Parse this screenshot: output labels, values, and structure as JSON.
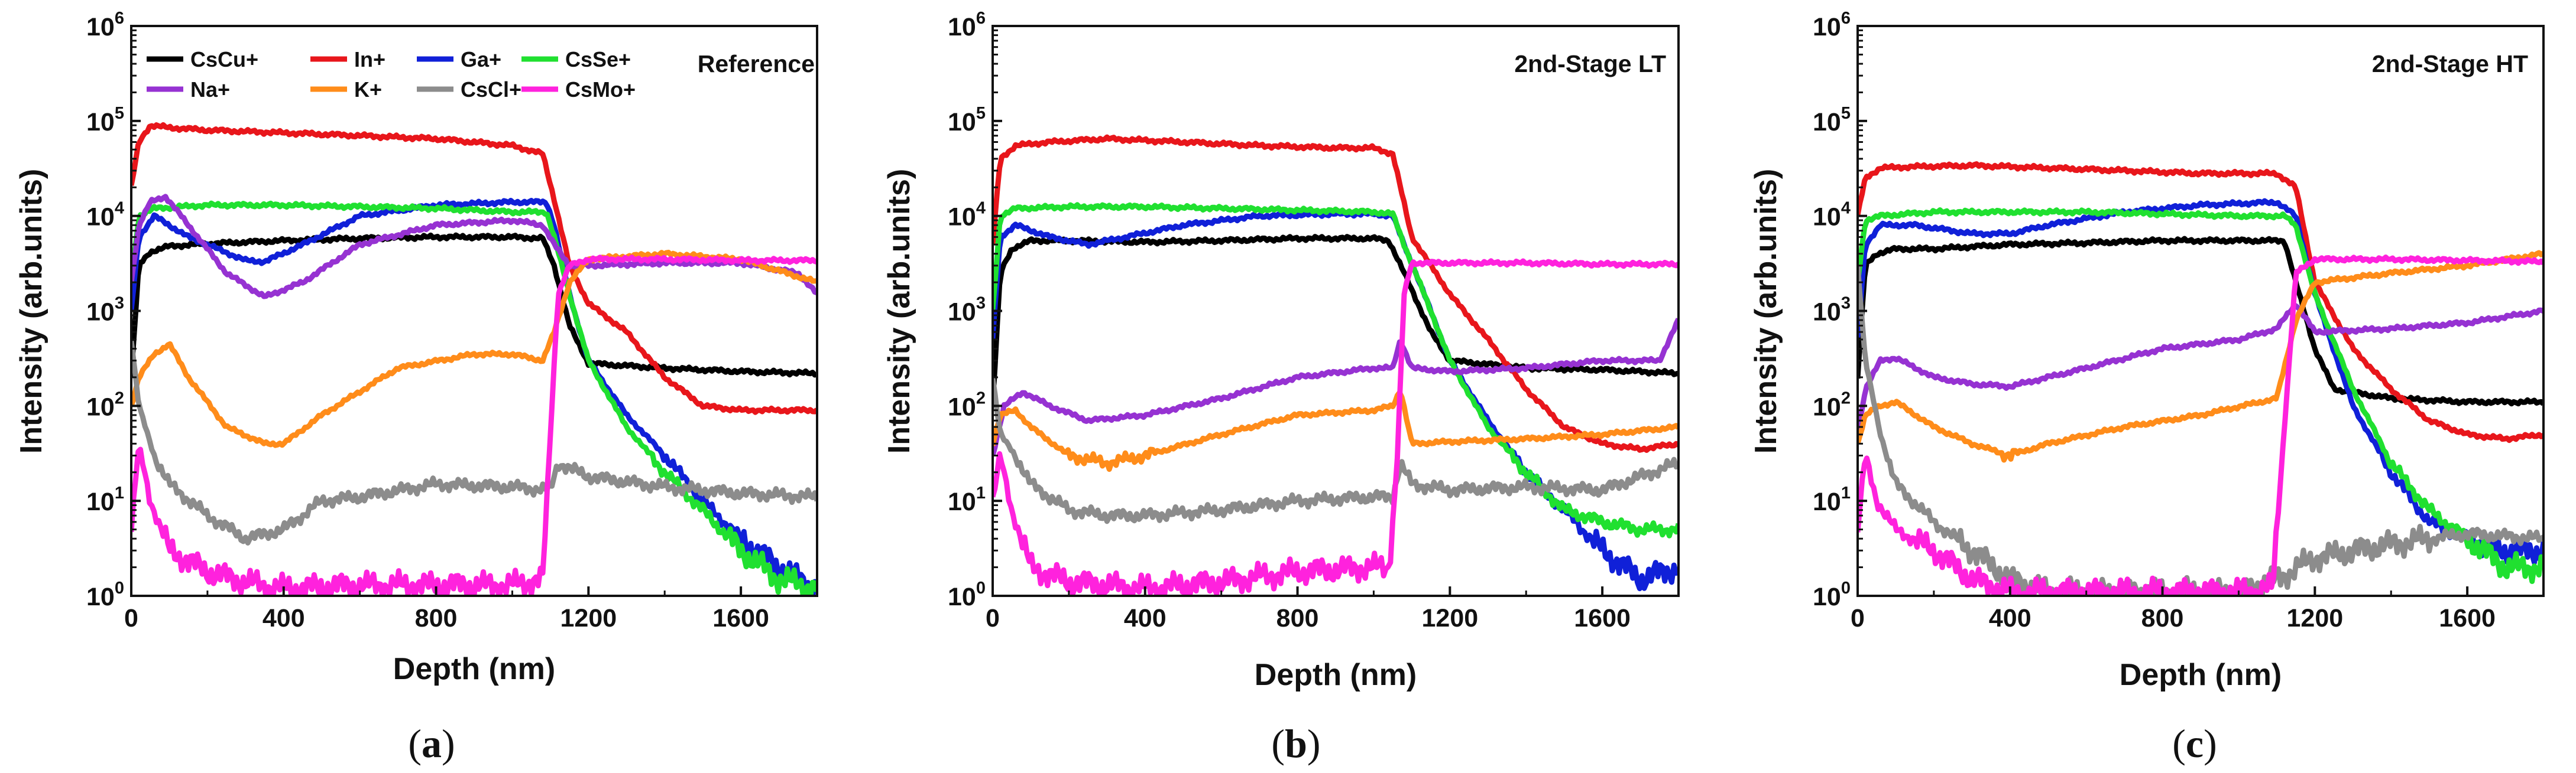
{
  "colors": {
    "CsCu+": "#000000",
    "In+": "#e8161b",
    "Ga+": "#1020d8",
    "CsSe+": "#20e030",
    "Na+": "#9632d2",
    "K+": "#ff8c1a",
    "CsCl+": "#8c8c8c",
    "CsMo+": "#ff22dd"
  },
  "chart_data": [
    {
      "type": "line",
      "panel_label": "a",
      "title": "Reference",
      "xlabel": "Depth (nm)",
      "ylabel": "Intensity (arb.units)",
      "yscale": "log",
      "xlim": [
        0,
        1800
      ],
      "ylim": [
        1,
        1000000
      ],
      "xticks": [
        "0",
        "400",
        "800",
        "1200",
        "1600"
      ],
      "yticks": [
        "10^0",
        "10^1",
        "10^2",
        "10^3",
        "10^4",
        "10^5",
        "10^6"
      ],
      "legend": [
        "CsCu+",
        "In+",
        "Ga+",
        "CsSe+",
        "Na+",
        "K+",
        "CsCl+",
        "CsMo+"
      ],
      "series": [
        {
          "name": "CsCu+",
          "x": [
            0,
            20,
            50,
            100,
            200,
            400,
            600,
            800,
            1000,
            1080,
            1110,
            1150,
            1200,
            1400,
            1600,
            1800
          ],
          "y": [
            200,
            3000,
            4200,
            4800,
            5100,
            5500,
            5800,
            6000,
            6000,
            5800,
            3000,
            700,
            280,
            250,
            230,
            220
          ]
        },
        {
          "name": "In+",
          "x": [
            0,
            20,
            50,
            100,
            200,
            400,
            600,
            800,
            1000,
            1080,
            1110,
            1150,
            1200,
            1300,
            1400,
            1500,
            1600,
            1700,
            1800
          ],
          "y": [
            20000,
            60000,
            90000,
            85000,
            80000,
            75000,
            70000,
            65000,
            55000,
            45000,
            15000,
            3000,
            1200,
            600,
            200,
            100,
            90,
            90,
            90
          ]
        },
        {
          "name": "Ga+",
          "x": [
            0,
            20,
            60,
            150,
            300,
            350,
            450,
            600,
            800,
            1000,
            1090,
            1110,
            1150,
            1200,
            1300,
            1400,
            1500,
            1600,
            1700,
            1800
          ],
          "y": [
            1000,
            6000,
            10000,
            6000,
            3400,
            3300,
            5000,
            10000,
            13000,
            14000,
            14000,
            8000,
            1500,
            300,
            80,
            30,
            10,
            4,
            2,
            1.2
          ]
        },
        {
          "name": "CsSe+",
          "x": [
            0,
            20,
            60,
            200,
            400,
            600,
            800,
            1000,
            1090,
            1110,
            1150,
            1200,
            1300,
            1400,
            1500,
            1600,
            1700,
            1800
          ],
          "y": [
            2000,
            10000,
            12000,
            13000,
            13000,
            12500,
            12000,
            11000,
            11000,
            6000,
            1500,
            300,
            60,
            20,
            8,
            3,
            1.5,
            1.2
          ]
        },
        {
          "name": "Na+",
          "x": [
            0,
            20,
            50,
            90,
            150,
            250,
            350,
            450,
            600,
            800,
            1000,
            1080,
            1110,
            1150,
            1200,
            1400,
            1600,
            1750,
            1800
          ],
          "y": [
            2000,
            8000,
            14000,
            16000,
            8000,
            2500,
            1400,
            2000,
            5000,
            8000,
            9000,
            8000,
            5000,
            3000,
            3000,
            3200,
            3200,
            2500,
            1500
          ]
        },
        {
          "name": "K+",
          "x": [
            0,
            20,
            60,
            100,
            150,
            250,
            350,
            400,
            500,
            700,
            900,
            1000,
            1080,
            1110,
            1150,
            1200,
            1400,
            1600,
            1800
          ],
          "y": [
            100,
            200,
            350,
            450,
            200,
            60,
            40,
            40,
            80,
            250,
            350,
            350,
            300,
            600,
            2000,
            3500,
            4000,
            3500,
            2000
          ]
        },
        {
          "name": "CsCl+",
          "x": [
            0,
            20,
            60,
            100,
            200,
            300,
            400,
            500,
            600,
            800,
            1000,
            1100,
            1120,
            1200,
            1400,
            1600,
            1800
          ],
          "y": [
            500,
            100,
            30,
            15,
            7,
            4,
            5,
            10,
            11,
            15,
            14,
            13,
            25,
            18,
            14,
            12,
            11
          ]
        },
        {
          "name": "CsMo+",
          "x": [
            0,
            20,
            50,
            100,
            200,
            300,
            400,
            600,
            800,
            1000,
            1080,
            1100,
            1120,
            1150,
            1200,
            1400,
            1600,
            1800
          ],
          "y": [
            5,
            40,
            10,
            3,
            1.8,
            1.4,
            1.2,
            1.3,
            1.3,
            1.3,
            1.5,
            50,
            1500,
            3000,
            3500,
            3500,
            3400,
            3400
          ]
        }
      ]
    },
    {
      "type": "line",
      "panel_label": "b",
      "title": "2nd-Stage LT",
      "xlabel": "Depth (nm)",
      "ylabel": "Intensity (arb.units)",
      "yscale": "log",
      "xlim": [
        0,
        1800
      ],
      "ylim": [
        1,
        1000000
      ],
      "xticks": [
        "0",
        "400",
        "800",
        "1200",
        "1600"
      ],
      "yticks": [
        "10^0",
        "10^1",
        "10^2",
        "10^3",
        "10^4",
        "10^5",
        "10^6"
      ],
      "series": [
        {
          "name": "CsCu+",
          "x": [
            0,
            20,
            50,
            100,
            200,
            400,
            600,
            800,
            1000,
            1040,
            1080,
            1150,
            1200,
            1400,
            1600,
            1800
          ],
          "y": [
            100,
            2500,
            4500,
            5500,
            5500,
            5300,
            5500,
            5800,
            5800,
            5500,
            2500,
            600,
            300,
            250,
            240,
            220
          ]
        },
        {
          "name": "In+",
          "x": [
            0,
            20,
            60,
            150,
            300,
            500,
            700,
            900,
            1000,
            1050,
            1100,
            1200,
            1300,
            1400,
            1500,
            1600,
            1700,
            1800
          ],
          "y": [
            5000,
            40000,
            55000,
            60000,
            65000,
            60000,
            55000,
            52000,
            52000,
            45000,
            6000,
            1500,
            500,
            150,
            60,
            40,
            35,
            40
          ]
        },
        {
          "name": "Ga+",
          "x": [
            0,
            20,
            60,
            150,
            250,
            350,
            500,
            700,
            900,
            1000,
            1050,
            1080,
            1150,
            1200,
            1300,
            1400,
            1500,
            1600,
            1700,
            1800
          ],
          "y": [
            500,
            6000,
            8000,
            6000,
            5000,
            6000,
            8000,
            10000,
            10500,
            10500,
            10000,
            5000,
            1000,
            300,
            70,
            20,
            8,
            3,
            1.5,
            2
          ]
        },
        {
          "name": "CsSe+",
          "x": [
            0,
            20,
            60,
            200,
            400,
            600,
            800,
            1000,
            1050,
            1080,
            1150,
            1200,
            1300,
            1400,
            1500,
            1600,
            1700,
            1800
          ],
          "y": [
            1000,
            10000,
            12000,
            12500,
            12500,
            12000,
            11500,
            11000,
            10500,
            5000,
            1000,
            300,
            60,
            20,
            8,
            6,
            5,
            5
          ]
        },
        {
          "name": "Na+",
          "x": [
            0,
            30,
            80,
            150,
            250,
            400,
            600,
            800,
            1000,
            1050,
            1070,
            1100,
            1200,
            1400,
            1600,
            1750,
            1800
          ],
          "y": [
            30,
            100,
            140,
            100,
            70,
            80,
            120,
            200,
            250,
            250,
            500,
            250,
            230,
            250,
            300,
            300,
            800
          ]
        },
        {
          "name": "K+",
          "x": [
            0,
            20,
            60,
            100,
            200,
            300,
            400,
            600,
            800,
            1000,
            1050,
            1070,
            1100,
            1200,
            1400,
            1600,
            1800
          ],
          "y": [
            40,
            80,
            90,
            60,
            30,
            25,
            30,
            50,
            80,
            90,
            100,
            150,
            40,
            42,
            45,
            50,
            60
          ]
        },
        {
          "name": "CsCl+",
          "x": [
            0,
            20,
            60,
            100,
            200,
            300,
            400,
            600,
            800,
            1000,
            1050,
            1070,
            1100,
            1200,
            1400,
            1600,
            1800
          ],
          "y": [
            200,
            50,
            30,
            15,
            8,
            7,
            7,
            8,
            10,
            11,
            11,
            25,
            15,
            13,
            14,
            13,
            25
          ]
        },
        {
          "name": "CsMo+",
          "x": [
            0,
            20,
            50,
            100,
            200,
            400,
            600,
            800,
            1000,
            1040,
            1060,
            1080,
            1100,
            1200,
            1400,
            1600,
            1800
          ],
          "y": [
            10,
            30,
            8,
            2,
            1.4,
            1.2,
            1.4,
            1.8,
            2,
            2,
            20,
            1500,
            3200,
            3200,
            3200,
            3100,
            3100
          ]
        }
      ]
    },
    {
      "type": "line",
      "panel_label": "c",
      "title": "2nd-Stage HT",
      "xlabel": "Depth (nm)",
      "ylabel": "Intensity (arb.units)",
      "yscale": "log",
      "xlim": [
        0,
        1800
      ],
      "ylim": [
        1,
        1000000
      ],
      "xticks": [
        "0",
        "400",
        "800",
        "1200",
        "1600"
      ],
      "yticks": [
        "10^0",
        "10^1",
        "10^2",
        "10^3",
        "10^4",
        "10^5",
        "10^6"
      ],
      "series": [
        {
          "name": "CsCu+",
          "x": [
            0,
            20,
            50,
            100,
            200,
            400,
            600,
            800,
            1000,
            1120,
            1150,
            1200,
            1250,
            1400,
            1600,
            1800
          ],
          "y": [
            200,
            3000,
            4000,
            4500,
            4500,
            5000,
            5200,
            5500,
            5500,
            5500,
            2000,
            400,
            150,
            120,
            110,
            110
          ]
        },
        {
          "name": "In+",
          "x": [
            0,
            20,
            60,
            150,
            300,
            500,
            700,
            900,
            1100,
            1150,
            1200,
            1300,
            1400,
            1500,
            1600,
            1700,
            1800
          ],
          "y": [
            10000,
            25000,
            32000,
            33000,
            34000,
            32000,
            30000,
            28000,
            28000,
            20000,
            2000,
            400,
            150,
            70,
            50,
            45,
            50
          ]
        },
        {
          "name": "Ga+",
          "x": [
            0,
            20,
            60,
            150,
            300,
            400,
            500,
            700,
            900,
            1100,
            1150,
            1200,
            1300,
            1400,
            1500,
            1600,
            1700,
            1800
          ],
          "y": [
            500,
            5000,
            8000,
            8000,
            6500,
            6500,
            8000,
            11000,
            13000,
            14000,
            10000,
            1500,
            100,
            20,
            6,
            4,
            3,
            3
          ]
        },
        {
          "name": "CsSe+",
          "x": [
            0,
            20,
            60,
            200,
            400,
            600,
            800,
            1000,
            1120,
            1150,
            1200,
            1300,
            1400,
            1500,
            1600,
            1700,
            1800
          ],
          "y": [
            2000,
            9000,
            10000,
            11000,
            11000,
            11000,
            10500,
            10000,
            10000,
            8000,
            1500,
            150,
            25,
            8,
            4,
            2,
            2
          ]
        },
        {
          "name": "Na+",
          "x": [
            0,
            20,
            60,
            100,
            200,
            300,
            400,
            600,
            800,
            1000,
            1100,
            1150,
            1200,
            1400,
            1600,
            1800
          ],
          "y": [
            50,
            150,
            300,
            320,
            200,
            170,
            160,
            250,
            400,
            500,
            650,
            1200,
            600,
            650,
            750,
            1000
          ]
        },
        {
          "name": "K+",
          "x": [
            0,
            20,
            60,
            100,
            200,
            300,
            400,
            500,
            700,
            900,
            1100,
            1150,
            1200,
            1400,
            1600,
            1800
          ],
          "y": [
            40,
            80,
            100,
            110,
            60,
            40,
            30,
            40,
            60,
            80,
            120,
            800,
            2000,
            2500,
            3000,
            4000
          ]
        },
        {
          "name": "CsCl+",
          "x": [
            0,
            20,
            60,
            100,
            200,
            300,
            400,
            500,
            600,
            800,
            1000,
            1100,
            1200,
            1400,
            1600,
            1800
          ],
          "y": [
            3000,
            300,
            50,
            15,
            6,
            3,
            1.5,
            1.1,
            1.1,
            1.1,
            1.1,
            1.5,
            2.5,
            3.5,
            4.5,
            4
          ]
        },
        {
          "name": "CsMo+",
          "x": [
            0,
            20,
            50,
            100,
            200,
            300,
            400,
            500,
            600,
            1000,
            1090,
            1100,
            1150,
            1200,
            1400,
            1600,
            1800
          ],
          "y": [
            5,
            30,
            10,
            5,
            3,
            1.5,
            1.1,
            1.1,
            1.1,
            1.1,
            1.2,
            5,
            2500,
            3500,
            3500,
            3400,
            3300
          ]
        }
      ]
    }
  ]
}
